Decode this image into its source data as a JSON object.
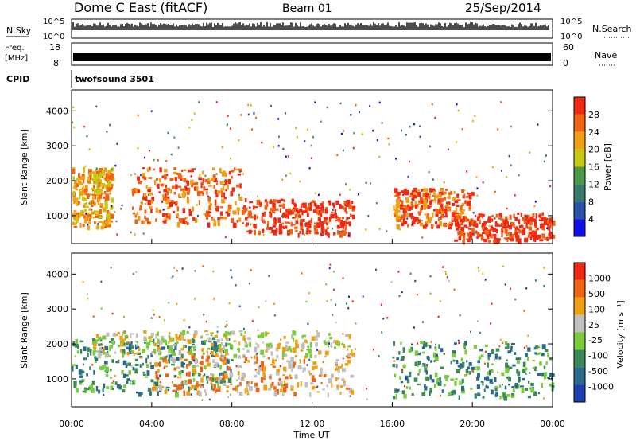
{
  "header": {
    "station": "Dome C East (fitACF)",
    "beam": "Beam 01",
    "date": "25/Sep/2014"
  },
  "strips": {
    "nsky": {
      "label": "N.Sky",
      "ticks": [
        "10^5",
        "10^0"
      ],
      "right_label": "N.Search",
      "right_ticks": [
        "10^5",
        "10^0"
      ]
    },
    "freq": {
      "label_1": "Freq.",
      "label_2": "[MHz]",
      "ticks": [
        "18",
        "8"
      ],
      "right_label": "Nave",
      "right_ticks": [
        "60",
        "0"
      ]
    },
    "cpid": {
      "label": "CPID",
      "value": "twofsound 3501"
    }
  },
  "panels": {
    "power": {
      "ylabel": "Slant Range [km]",
      "cbar_label": "Power [dB]",
      "cbar_ticks": [
        "28",
        "24",
        "20",
        "16",
        "12",
        "8",
        "4"
      ]
    },
    "velocity": {
      "ylabel": "Slant Range [km]",
      "cbar_label": "Velocity [m s⁻¹]",
      "cbar_ticks": [
        "1000",
        "500",
        "100",
        "25",
        "-25",
        "-100",
        "-500",
        "-1000"
      ]
    }
  },
  "xaxis": {
    "label": "Time UT"
  },
  "colors": {
    "power_scale": [
      "#1010e6",
      "#2a55a6",
      "#3a7a6a",
      "#4a9a4a",
      "#c8c814",
      "#f0a014",
      "#f06414",
      "#f02814"
    ],
    "velocity_scale": [
      "#1f3fb0",
      "#2a6a8a",
      "#3a8a5a",
      "#7acc3a",
      "#c0c0c0",
      "#f0a014",
      "#f06414",
      "#f02814"
    ]
  },
  "chart_data": [
    {
      "type": "line",
      "title": "N.Sky / N.Search",
      "xlabel": "Time UT",
      "x_unit": "hours",
      "xlim": [
        0,
        24
      ],
      "x_ticks": [
        "00:00",
        "04:00",
        "08:00",
        "12:00",
        "16:00",
        "20:00",
        "00:00"
      ],
      "ylim": [
        0,
        5
      ],
      "scale": "log10",
      "note_visible": "dense black trace near top of strip"
    },
    {
      "type": "line",
      "title": "Freq. [MHz] / Nave",
      "xlim": [
        0,
        24
      ],
      "ylim": [
        8,
        18
      ],
      "y2lim": [
        0,
        60
      ],
      "note_visible": "solid black band between 8 and 18"
    },
    {
      "type": "heatmap",
      "title": "Power [dB]",
      "xlabel": "Time UT",
      "ylabel": "Slant Range [km]",
      "xlim": [
        0,
        24
      ],
      "ylim": [
        200,
        4600
      ],
      "y_ticks": [
        1000,
        2000,
        3000,
        4000
      ],
      "colorbar": {
        "label": "Power [dB]",
        "ticks": [
          4,
          8,
          12,
          16,
          20,
          24,
          28
        ],
        "range": [
          0,
          32
        ]
      },
      "features": [
        {
          "x_range": [
            0,
            2
          ],
          "y_range": [
            700,
            2400
          ],
          "level_dB": 18
        },
        {
          "x_range": [
            3,
            8.5
          ],
          "y_range": [
            800,
            2400
          ],
          "level_dB": 22
        },
        {
          "x_range": [
            8.5,
            14
          ],
          "y_range": [
            500,
            1500
          ],
          "level_dB": 28
        },
        {
          "x_range": [
            16,
            20
          ],
          "y_range": [
            700,
            1800
          ],
          "level_dB": 24
        },
        {
          "x_range": [
            19,
            24
          ],
          "y_range": [
            300,
            1100
          ],
          "level_dB": 28
        }
      ]
    },
    {
      "type": "heatmap",
      "title": "Velocity [m s^-1]",
      "xlabel": "Time UT",
      "ylabel": "Slant Range [km]",
      "xlim": [
        0,
        24
      ],
      "ylim": [
        200,
        4600
      ],
      "y_ticks": [
        1000,
        2000,
        3000,
        4000
      ],
      "colorbar": {
        "label": "Velocity [m s^-1]",
        "ticks": [
          1000,
          500,
          100,
          25,
          -25,
          -100,
          -500,
          -1000
        ]
      },
      "features": [
        {
          "x_range": [
            0,
            8
          ],
          "y_range": [
            600,
            2200
          ],
          "velocity": 100
        },
        {
          "x_range": [
            4,
            14
          ],
          "y_range": [
            600,
            1700
          ],
          "velocity": -100
        },
        {
          "x_range": [
            1,
            14
          ],
          "y_range": [
            1700,
            2400
          ],
          "velocity": 0
        },
        {
          "x_range": [
            16,
            24
          ],
          "y_range": [
            500,
            2100
          ],
          "velocity": 100
        }
      ]
    }
  ]
}
